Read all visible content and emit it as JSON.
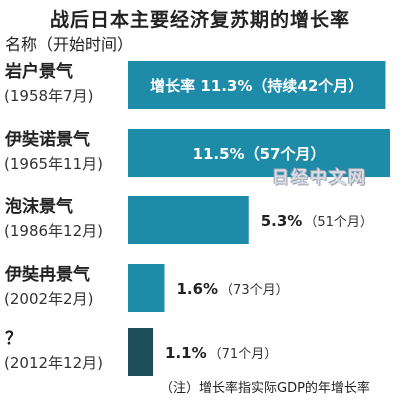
{
  "title": "战后日本主要经济复苏期的增长率",
  "column_header": "名称（开始时间）",
  "watermark": "日经中文网",
  "footnote": "（注）增长率指实际GDP的年增长率",
  "colors": {
    "bar": "#1e8ba8",
    "bar_last": "#1d4e5c"
  },
  "chart_data": {
    "type": "bar",
    "orientation": "horizontal",
    "categories": [
      "岩户景气",
      "伊奘诺景气",
      "泡沫景气",
      "伊奘冉景气",
      "？"
    ],
    "start_dates": [
      "(1958年7月)",
      "(1965年11月)",
      "(1986年12月)",
      "(2002年2月)",
      "(2012年12月)"
    ],
    "values": [
      11.3,
      11.5,
      5.3,
      1.6,
      1.1
    ],
    "value_labels": [
      {
        "main": "增长率 11.3%（持续42个月）",
        "sub": ""
      },
      {
        "main": "11.5%（57个月）",
        "sub": ""
      },
      {
        "main": "5.3%",
        "sub": "（51个月）"
      },
      {
        "main": "1.6%",
        "sub": "（73个月）"
      },
      {
        "main": "1.1%",
        "sub": "（71个月）"
      }
    ],
    "label_inside": [
      true,
      true,
      false,
      false,
      false
    ],
    "xlim": [
      0,
      11.5
    ],
    "xlabel": "",
    "ylabel": ""
  }
}
